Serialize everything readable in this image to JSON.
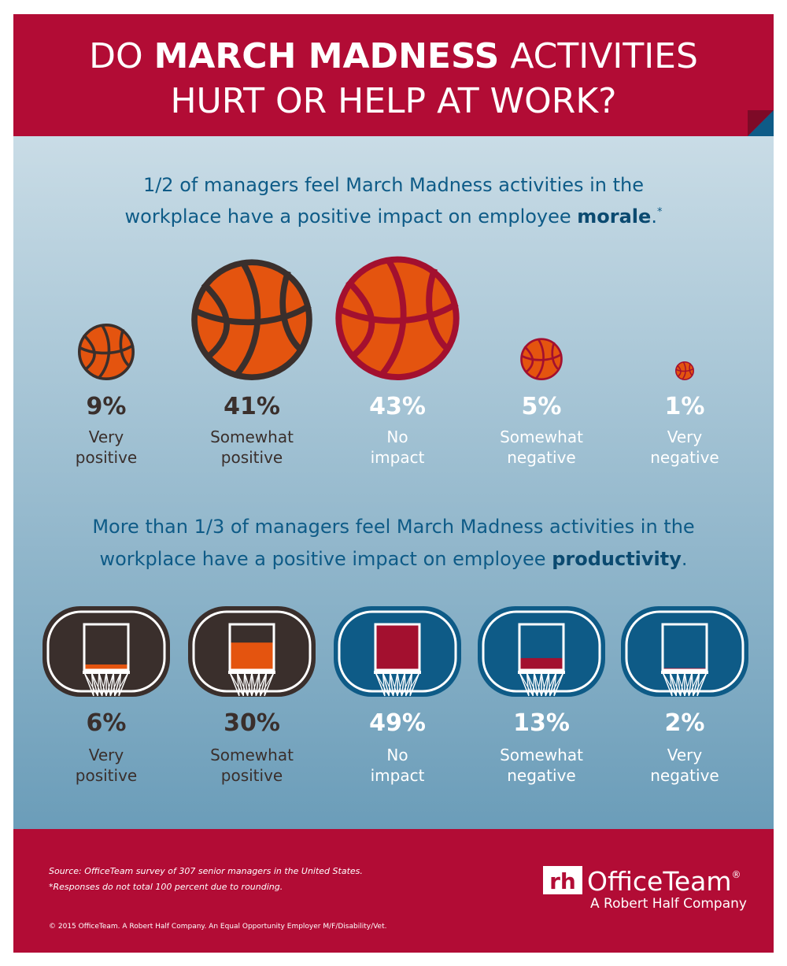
{
  "header": {
    "title_line1": [
      "DO ",
      "MARCH MADNESS",
      " ACTIVITIES"
    ],
    "title_line2": "HURT OR HELP AT WORK?"
  },
  "chart_data": [
    {
      "type": "bubble",
      "title_lines": [
        [
          "1/2 of managers feel March Madness activities in the"
        ],
        [
          "workplace have a positive impact on employee ",
          "morale",
          ".",
          "*"
        ]
      ],
      "categories": [
        "Very positive",
        "Somewhat positive",
        "No impact",
        "Somewhat negative",
        "Very negative"
      ],
      "values": [
        9,
        41,
        43,
        5,
        1
      ],
      "value_labels": [
        "9%",
        "41%",
        "43%",
        "5%",
        "1%"
      ],
      "colors": [
        "#e4540f",
        "#e4540f",
        "#e4540f",
        "#e4540f",
        "#e4540f"
      ],
      "outline_colors": [
        "#3a2f2c",
        "#3a2f2c",
        "#a3102f",
        "#a3102f",
        "#a3102f"
      ],
      "text_colors": [
        "#3a2f2c",
        "#3a2f2c",
        "#ffffff",
        "#ffffff",
        "#ffffff"
      ]
    },
    {
      "type": "bar",
      "title_lines": [
        [
          "More than 1/3 of managers feel March Madness activities in the"
        ],
        [
          "workplace have a positive impact on employee ",
          "productivity",
          "."
        ]
      ],
      "categories": [
        "Very positive",
        "Somewhat positive",
        "No impact",
        "Somewhat negative",
        "Very negative"
      ],
      "values": [
        6,
        30,
        49,
        13,
        2
      ],
      "value_labels": [
        "6%",
        "30%",
        "49%",
        "13%",
        "2%"
      ],
      "colors": [
        "#e4540f",
        "#e4540f",
        "#a3102f",
        "#a3102f",
        "#a3102f"
      ],
      "outline_colors": [
        "#3a2f2c",
        "#3a2f2c",
        "#0e5b87",
        "#0e5b87",
        "#0e5b87"
      ],
      "text_colors": [
        "#3a2f2c",
        "#3a2f2c",
        "#ffffff",
        "#ffffff",
        "#ffffff"
      ]
    }
  ],
  "footer": {
    "source": "Source: OfficeTeam survey of 307 senior managers in the United States.",
    "footnote": "*Responses do not total 100 percent due to rounding.",
    "copyright": "© 2015 OfficeTeam. A Robert Half Company. An Equal Opportunity Employer M/F/Disability/Vet.",
    "logo_mark": "rh",
    "logo_name": "OfficeTeam",
    "logo_reg": "®",
    "logo_tagline": "A Robert Half Company"
  }
}
